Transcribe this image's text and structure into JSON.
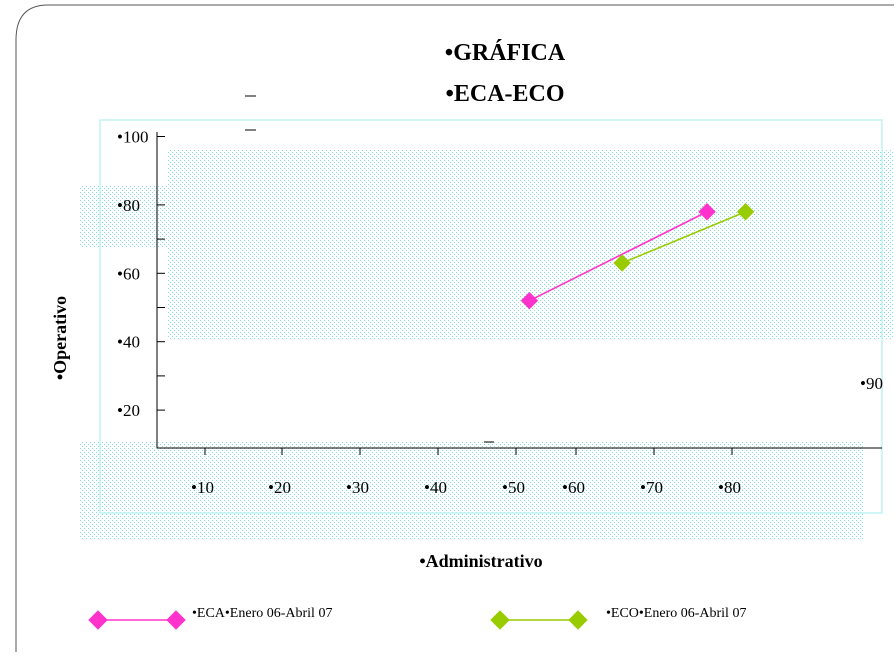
{
  "chart_data": {
    "type": "line",
    "title_line1": "•GRÁFICA",
    "title_line2": "•ECA-ECO",
    "xlabel": "•Administrativo",
    "ylabel": "•Operativo",
    "x_tick_labels": [
      "•10",
      "•20",
      "•30",
      "•40",
      "•50",
      "•60",
      "•70",
      "•80",
      "•90"
    ],
    "x_tick_values": [
      10,
      20,
      30,
      40,
      50,
      60,
      70,
      80,
      90
    ],
    "y_tick_labels": [
      "•20",
      "•40",
      "•60",
      "•80",
      "•100"
    ],
    "y_tick_values": [
      20,
      40,
      60,
      80,
      100
    ],
    "xlim": [
      0,
      90
    ],
    "ylim": [
      0,
      100
    ],
    "series": [
      {
        "name": "•ECA•Enero 06-Abril 07",
        "color": "#ff33cc",
        "marker": "diamond",
        "x": [
          52,
          75
        ],
        "y": [
          52,
          78
        ]
      },
      {
        "name": "•ECO•Enero 06-Abril 07",
        "color": "#99cc00",
        "marker": "diamond",
        "x": [
          64,
          80
        ],
        "y": [
          63,
          78
        ]
      }
    ]
  },
  "colors": {
    "frame": "#555555",
    "plot_area_border": "#bff2f2",
    "pattern": "#7fdede",
    "axis": "#000000"
  }
}
